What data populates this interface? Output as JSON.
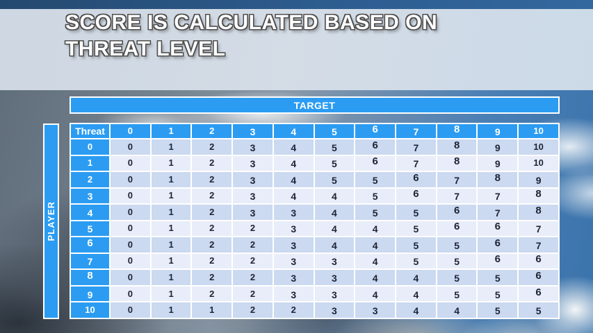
{
  "slide": {
    "title": {
      "line1": "SCORE IS CALCULATED BASED ON",
      "line2": "THREAT LEVEL"
    }
  },
  "score_table": {
    "target_label": "TARGET",
    "player_label": "PLAYER",
    "corner_label": "Threat",
    "column_headers": [
      "0",
      "1",
      "2",
      "3",
      "4",
      "5",
      "6",
      "7",
      "8",
      "9",
      "10"
    ],
    "rows": [
      {
        "threat": "0",
        "values": [
          "0",
          "1",
          "2",
          "3",
          "4",
          "5",
          "6",
          "7",
          "8",
          "9",
          "10"
        ]
      },
      {
        "threat": "1",
        "values": [
          "0",
          "1",
          "2",
          "3",
          "4",
          "5",
          "6",
          "7",
          "8",
          "9",
          "10"
        ]
      },
      {
        "threat": "2",
        "values": [
          "0",
          "1",
          "2",
          "3",
          "4",
          "5",
          "5",
          "6",
          "7",
          "8",
          "9"
        ]
      },
      {
        "threat": "3",
        "values": [
          "0",
          "1",
          "2",
          "3",
          "4",
          "4",
          "5",
          "6",
          "7",
          "7",
          "8"
        ]
      },
      {
        "threat": "4",
        "values": [
          "0",
          "1",
          "2",
          "3",
          "3",
          "4",
          "5",
          "5",
          "6",
          "7",
          "8"
        ]
      },
      {
        "threat": "5",
        "values": [
          "0",
          "1",
          "2",
          "2",
          "3",
          "4",
          "4",
          "5",
          "6",
          "6",
          "7"
        ]
      },
      {
        "threat": "6",
        "values": [
          "0",
          "1",
          "2",
          "2",
          "3",
          "4",
          "4",
          "5",
          "5",
          "6",
          "7"
        ]
      },
      {
        "threat": "7",
        "values": [
          "0",
          "1",
          "2",
          "2",
          "3",
          "3",
          "4",
          "5",
          "5",
          "6",
          "6"
        ]
      },
      {
        "threat": "8",
        "values": [
          "0",
          "1",
          "2",
          "2",
          "3",
          "3",
          "4",
          "4",
          "5",
          "5",
          "6"
        ]
      },
      {
        "threat": "9",
        "values": [
          "0",
          "1",
          "2",
          "2",
          "3",
          "3",
          "4",
          "4",
          "5",
          "5",
          "6"
        ]
      },
      {
        "threat": "10",
        "values": [
          "0",
          "1",
          "1",
          "2",
          "2",
          "3",
          "3",
          "4",
          "4",
          "5",
          "5"
        ]
      }
    ]
  },
  "colors": {
    "accent_blue": "#2b9cf2",
    "row_dark": "#cbd9f1",
    "row_light": "#e8edf9",
    "cell_text": "#1d2433",
    "title_text": "#ffffff",
    "title_outline": "#4e4e4e"
  }
}
